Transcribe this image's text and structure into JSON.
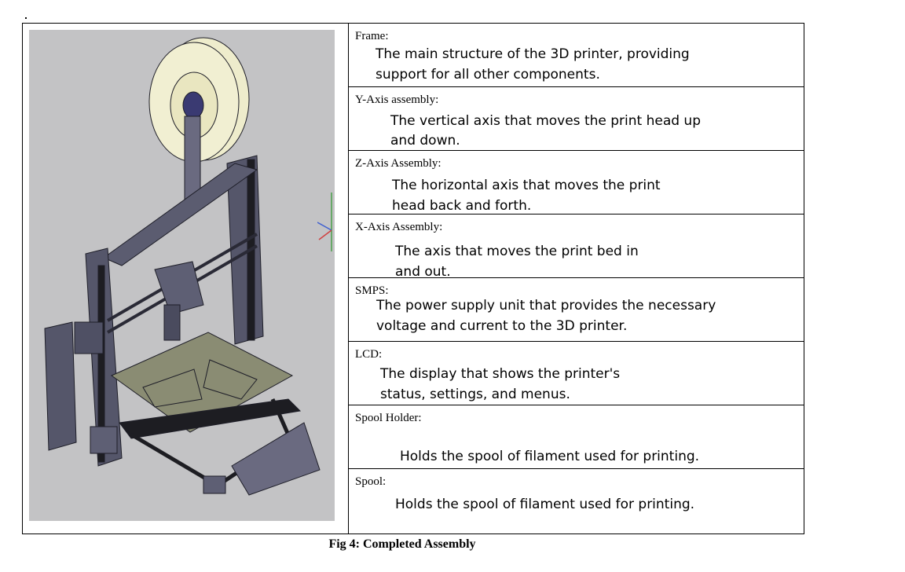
{
  "document": {
    "rows": [
      {
        "label": "Frame:",
        "lines": [
          "The main structure of the 3D printer, providing",
          "support for all other components."
        ]
      },
      {
        "label": "Y-Axis assembly:",
        "lines": [
          "The vertical axis that moves the print head up",
          "and down."
        ]
      },
      {
        "label": "Z-Axis Assembly:",
        "lines": [
          "The horizontal axis that moves the print",
          "head back and forth."
        ]
      },
      {
        "label": "X-Axis Assembly:",
        "lines": [
          "The axis that moves the print bed in",
          "and out."
        ]
      },
      {
        "label": "SMPS:",
        "lines": [
          "The power supply unit that provides the necessary",
          "voltage and current to the 3D printer."
        ]
      },
      {
        "label": "LCD:",
        "lines": [
          "The display that shows the printer's",
          "status, settings, and menus."
        ]
      },
      {
        "label": "Spool Holder:",
        "lines": [
          "Holds the spool of filament used for printing."
        ]
      },
      {
        "label": "Spool:",
        "lines": [
          "Holds the spool of filament used for printing."
        ]
      }
    ],
    "caption": "Fig 4: Completed Assembly"
  },
  "colors": {
    "cad_background": "#c3c3c5",
    "frame": "#55566a",
    "spool": "#eeeccc",
    "bed": "#8a8c73"
  }
}
